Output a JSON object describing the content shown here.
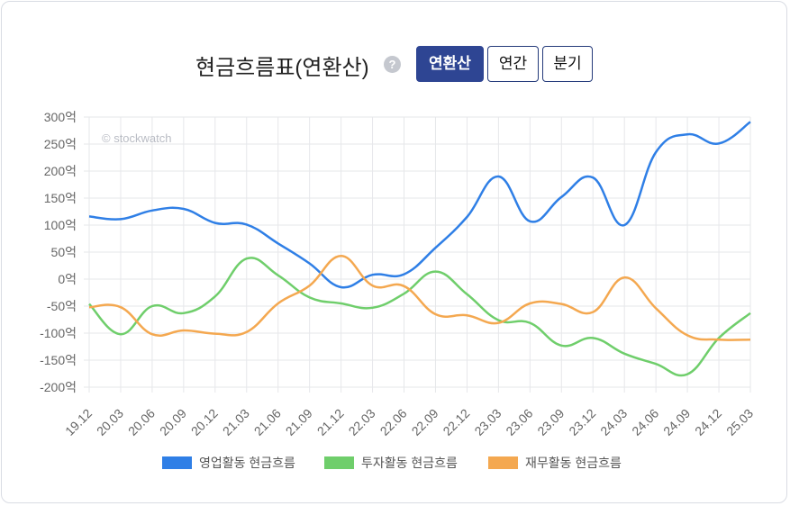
{
  "header": {
    "title": "현금흐름표(연환산)",
    "help_icon": "question-circle-icon",
    "buttons": [
      {
        "label": "연환산",
        "active": true
      },
      {
        "label": "연간",
        "active": false
      },
      {
        "label": "분기",
        "active": false
      }
    ]
  },
  "watermark": "© stockwatch",
  "chart_data": {
    "type": "line",
    "categories": [
      "19.12",
      "20.03",
      "20.06",
      "20.09",
      "20.12",
      "21.03",
      "21.06",
      "21.09",
      "21.12",
      "22.03",
      "22.06",
      "22.09",
      "22.12",
      "23.03",
      "23.06",
      "23.09",
      "23.12",
      "24.03",
      "24.06",
      "24.09",
      "24.12",
      "25.03"
    ],
    "y_ticks": [
      "300억",
      "250억",
      "200억",
      "150억",
      "100억",
      "50억",
      "0억",
      "-50억",
      "-100억",
      "-150억",
      "-200억"
    ],
    "ylim": [
      -200,
      300
    ],
    "grid": true,
    "legend_position": "bottom",
    "series": [
      {
        "name": "영업활동 현금흐름",
        "color": "#2f7fe6",
        "values": [
          116,
          111,
          127,
          130,
          104,
          101,
          66,
          29,
          -15,
          8,
          9,
          58,
          115,
          190,
          107,
          152,
          188,
          100,
          235,
          268,
          251,
          291
        ]
      },
      {
        "name": "투자활동 현금흐름",
        "color": "#6fce6b",
        "values": [
          -46,
          -102,
          -50,
          -63,
          -32,
          38,
          7,
          -34,
          -45,
          -53,
          -27,
          14,
          -28,
          -76,
          -81,
          -123,
          -109,
          -138,
          -157,
          -176,
          -109,
          -63
        ]
      },
      {
        "name": "재무활동 현금흐름",
        "color": "#f4a850",
        "values": [
          -52,
          -52,
          -102,
          -95,
          -101,
          -98,
          -45,
          -12,
          43,
          -12,
          -13,
          -65,
          -67,
          -81,
          -45,
          -46,
          -61,
          3,
          -54,
          -104,
          -112,
          -112
        ]
      }
    ]
  }
}
